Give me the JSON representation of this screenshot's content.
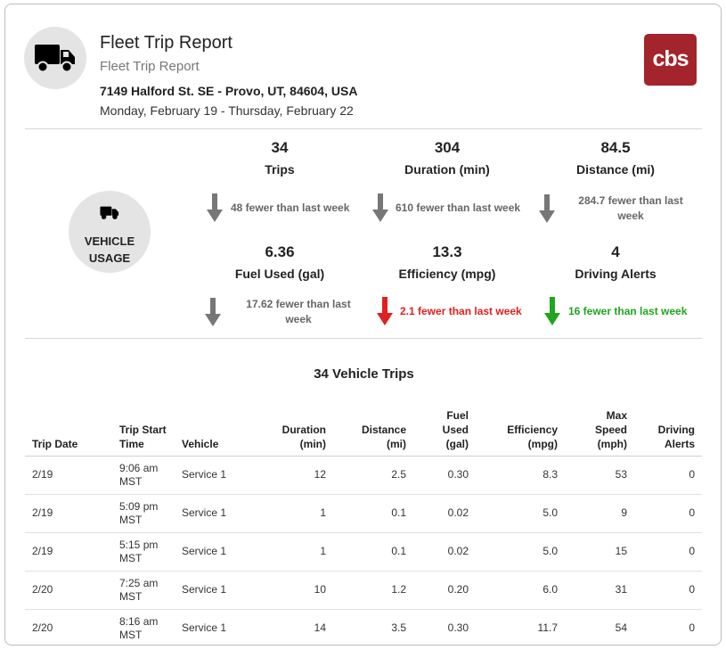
{
  "header": {
    "title": "Fleet Trip Report",
    "subtitle": "Fleet Trip Report",
    "address": "7149 Halford St. SE - Provo, UT, 84604, USA",
    "date_range": "Monday, February 19 - Thursday, February 22",
    "logo_text": "cbs",
    "logo_color": "#a3242a"
  },
  "usage": {
    "label_line1": "VEHICLE",
    "label_line2": "USAGE",
    "metrics": [
      {
        "value": "34",
        "label": "Trips",
        "change": "48 fewer than last week",
        "direction": "down",
        "color": "#777777"
      },
      {
        "value": "304",
        "label": "Duration (min)",
        "change": "610 fewer than last week",
        "direction": "down",
        "color": "#777777"
      },
      {
        "value": "84.5",
        "label": "Distance (mi)",
        "change": "284.7 fewer than last week",
        "direction": "down",
        "color": "#777777"
      },
      {
        "value": "6.36",
        "label": "Fuel Used (gal)",
        "change": "17.62 fewer than last week",
        "direction": "down",
        "color": "#777777"
      },
      {
        "value": "13.3",
        "label": "Efficiency (mpg)",
        "change": "2.1 fewer than last week",
        "direction": "down",
        "color": "#e02020"
      },
      {
        "value": "4",
        "label": "Driving Alerts",
        "change": "16 fewer than last week",
        "direction": "down",
        "color": "#1fa51f"
      }
    ]
  },
  "table": {
    "title": "34 Vehicle Trips",
    "columns": [
      "Trip Date",
      "Trip Start Time",
      "Vehicle",
      "Duration (min)",
      "Distance (mi)",
      "Fuel Used (gal)",
      "Efficiency (mpg)",
      "Max Speed (mph)",
      "Driving Alerts"
    ],
    "rows": [
      [
        "2/19",
        "9:06 am MST",
        "Service 1",
        "12",
        "2.5",
        "0.30",
        "8.3",
        "53",
        "0"
      ],
      [
        "2/19",
        "5:09 pm MST",
        "Service 1",
        "1",
        "0.1",
        "0.02",
        "5.0",
        "9",
        "0"
      ],
      [
        "2/19",
        "5:15 pm MST",
        "Service 1",
        "1",
        "0.1",
        "0.02",
        "5.0",
        "15",
        "0"
      ],
      [
        "2/20",
        "7:25 am MST",
        "Service 1",
        "10",
        "1.2",
        "0.20",
        "6.0",
        "31",
        "0"
      ],
      [
        "2/20",
        "8:16 am MST",
        "Service 1",
        "14",
        "3.5",
        "0.30",
        "11.7",
        "54",
        "0"
      ]
    ]
  }
}
